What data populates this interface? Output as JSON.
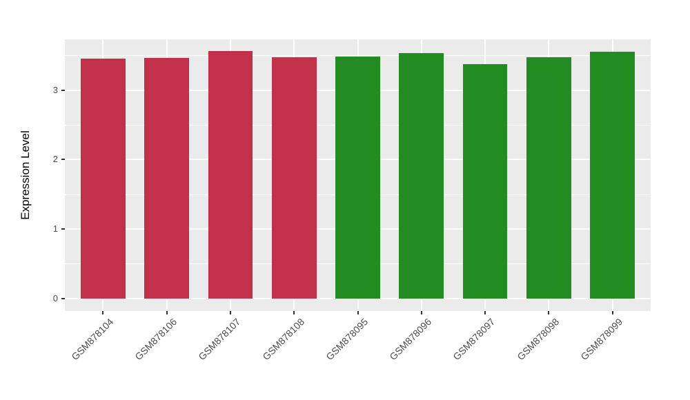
{
  "chart_data": {
    "type": "bar",
    "title": "",
    "xlabel": "",
    "ylabel": "Expression Level",
    "categories": [
      "GSM878104",
      "GSM878106",
      "GSM878107",
      "GSM878108",
      "GSM878095",
      "GSM878096",
      "GSM878097",
      "GSM878098",
      "GSM878099"
    ],
    "values": [
      3.45,
      3.46,
      3.56,
      3.47,
      3.48,
      3.53,
      3.37,
      3.47,
      3.55
    ],
    "bar_colors": [
      "#C33049",
      "#C33049",
      "#C33049",
      "#C33049",
      "#228B22",
      "#228B22",
      "#228B22",
      "#228B22",
      "#228B22"
    ],
    "groups": [
      {
        "name": "group-red",
        "color": "#C33049",
        "members": [
          "GSM878104",
          "GSM878106",
          "GSM878107",
          "GSM878108"
        ]
      },
      {
        "name": "group-green",
        "color": "#228B22",
        "members": [
          "GSM878095",
          "GSM878096",
          "GSM878097",
          "GSM878098",
          "GSM878099"
        ]
      }
    ],
    "y_ticks": [
      0,
      1,
      2,
      3
    ],
    "y_minor_ticks": [
      0.5,
      1.5,
      2.5,
      3.5
    ],
    "ylim": [
      -0.18,
      3.72
    ],
    "grid": true,
    "legend": "none",
    "colors": {
      "figure_background": "#FFFFFF",
      "panel_background": "#EBEBEB",
      "gridline": "#FFFFFF",
      "axis_text": "#4D4D4D",
      "tick_mark": "#333333",
      "axis_title": "#000000"
    }
  }
}
